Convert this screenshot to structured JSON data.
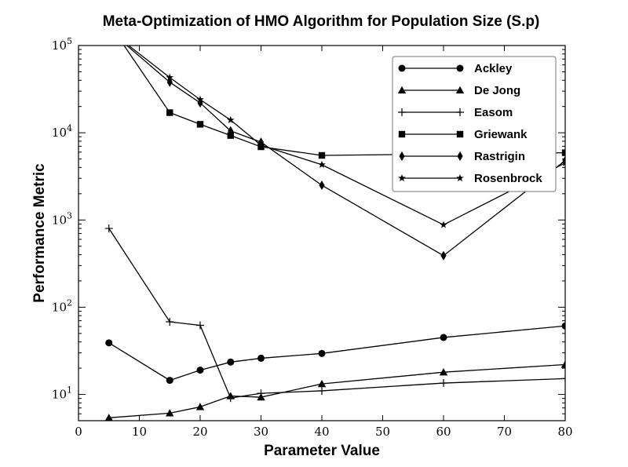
{
  "chart_data": {
    "type": "line",
    "title": "Meta-Optimization of HMO Algorithm for Population Size (S.p)",
    "xlabel": "Parameter Value",
    "ylabel": "Performance Metric",
    "xlim": [
      0,
      80
    ],
    "ylim": [
      5,
      100000
    ],
    "yscale": "log",
    "x_ticks": [
      0,
      10,
      20,
      30,
      40,
      50,
      60,
      70,
      80
    ],
    "y_ticks": [
      {
        "base": "10",
        "exp": "1",
        "value": 10
      },
      {
        "base": "10",
        "exp": "2",
        "value": 100
      },
      {
        "base": "10",
        "exp": "3",
        "value": 1000
      },
      {
        "base": "10",
        "exp": "4",
        "value": 10000
      },
      {
        "base": "10",
        "exp": "5",
        "value": 100000
      }
    ],
    "grid": false,
    "legend_position": "top-right",
    "x": [
      5,
      15,
      20,
      25,
      30,
      40,
      60,
      80
    ],
    "series": [
      {
        "name": "Ackley",
        "marker": "circle",
        "values": [
          39,
          14.5,
          19,
          23.5,
          26,
          29.5,
          45,
          61
        ]
      },
      {
        "name": "De Jong",
        "marker": "triangle",
        "values": [
          5.4,
          6.1,
          7.2,
          9.6,
          9.3,
          13.2,
          18,
          22
        ]
      },
      {
        "name": "Easom",
        "marker": "plus",
        "values": [
          800,
          68,
          62,
          9.1,
          10.3,
          11,
          13.5,
          15.2
        ]
      },
      {
        "name": "Griewank",
        "marker": "square",
        "values": [
          180000,
          17000,
          12500,
          9300,
          6900,
          5500,
          5700,
          5900
        ]
      },
      {
        "name": "Rastrigin",
        "marker": "diamond",
        "values": [
          150000,
          38000,
          22000,
          10500,
          7800,
          2500,
          390,
          4800
        ]
      },
      {
        "name": "Rosenbrock",
        "marker": "star",
        "values": [
          150000,
          43000,
          24000,
          14000,
          7200,
          4300,
          880,
          4500
        ]
      }
    ]
  }
}
